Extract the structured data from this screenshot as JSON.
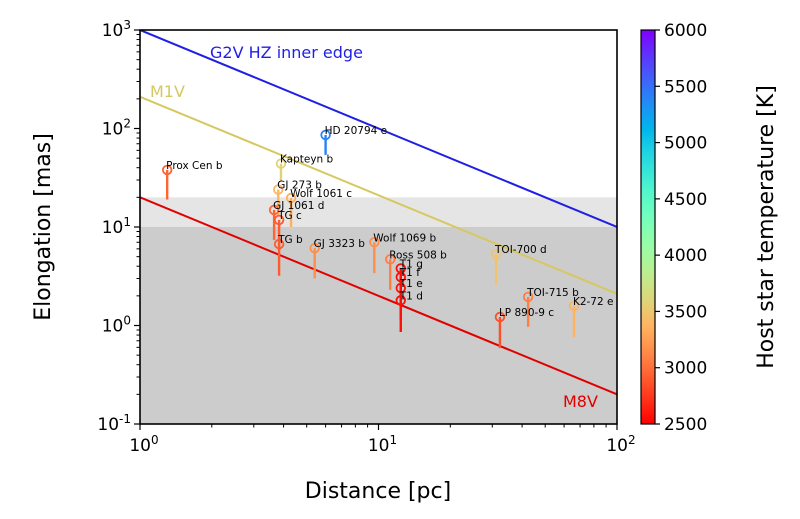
{
  "chart_data": {
    "type": "scatter",
    "xlabel": "Distance [pc]",
    "ylabel": "Elongation [mas]",
    "xscale": "log",
    "yscale": "log",
    "xlim": [
      1,
      100
    ],
    "ylim": [
      0.1,
      1000
    ],
    "x_tick_exponents": [
      0,
      1,
      2
    ],
    "y_tick_exponents": [
      -1,
      0,
      1,
      2,
      3
    ],
    "grid": false,
    "shaded_bands": [
      {
        "from_mas": 10,
        "to_mas": 20,
        "color": "#e5e5e5"
      },
      {
        "from_mas": 0.1,
        "to_mas": 10,
        "color": "#cccccc"
      }
    ],
    "reference_lines": [
      {
        "label": "G2V HZ inner edge",
        "color": "#1f1fe6",
        "elongation_at_1pc": 1000,
        "elongation_at_100pc": 10
      },
      {
        "label": "M1V",
        "color": "#d6c860",
        "elongation_at_1pc": 210,
        "elongation_at_100pc": 2.1
      },
      {
        "label": "M8V",
        "color": "#e00000",
        "elongation_at_1pc": 20,
        "elongation_at_100pc": 0.2
      }
    ],
    "colorbar": {
      "label": "Host star temperature [K]",
      "colormap": "rainbow_r",
      "range": [
        2500,
        6000
      ],
      "ticks": [
        2500,
        3000,
        3500,
        4000,
        4500,
        5000,
        5500,
        6000
      ]
    },
    "planets": [
      {
        "name": "Prox Cen b",
        "distance_pc": 1.3,
        "elongation_mas": 38,
        "elongation_min_mas": 19,
        "temperature_K": 2950
      },
      {
        "name": "Kapteyn b",
        "distance_pc": 3.9,
        "elongation_mas": 44,
        "elongation_min_mas": 29,
        "temperature_K": 3570
      },
      {
        "name": "HD 20794 e",
        "distance_pc": 6.0,
        "elongation_mas": 86,
        "elongation_min_mas": 54,
        "temperature_K": 5400
      },
      {
        "name": "GJ 273 b",
        "distance_pc": 3.8,
        "elongation_mas": 24,
        "elongation_min_mas": 13,
        "temperature_K": 3380
      },
      {
        "name": "Wolf 1061 c",
        "distance_pc": 4.3,
        "elongation_mas": 19.7,
        "elongation_min_mas": 10,
        "temperature_K": 3340
      },
      {
        "name": "GJ 1061 d",
        "distance_pc": 3.65,
        "elongation_mas": 14.9,
        "elongation_min_mas": 7.4,
        "temperature_K": 2950
      },
      {
        "name": "TG c",
        "distance_pc": 3.83,
        "elongation_mas": 11.8,
        "elongation_min_mas": 5.8,
        "temperature_K": 2900
      },
      {
        "name": "TG b",
        "distance_pc": 3.83,
        "elongation_mas": 6.7,
        "elongation_min_mas": 3.2,
        "temperature_K": 2900
      },
      {
        "name": "GJ 3323 b",
        "distance_pc": 5.4,
        "elongation_mas": 6.1,
        "elongation_min_mas": 3.0,
        "temperature_K": 3160
      },
      {
        "name": "Wolf 1069 b",
        "distance_pc": 9.6,
        "elongation_mas": 7.0,
        "elongation_min_mas": 3.4,
        "temperature_K": 3160
      },
      {
        "name": "Ross 508 b",
        "distance_pc": 11.2,
        "elongation_mas": 4.7,
        "elongation_min_mas": 2.3,
        "temperature_K": 3070
      },
      {
        "name": "T1 g",
        "distance_pc": 12.4,
        "elongation_mas": 3.8,
        "elongation_min_mas": 1.8,
        "temperature_K": 2560
      },
      {
        "name": "T1 f",
        "distance_pc": 12.4,
        "elongation_mas": 3.1,
        "elongation_min_mas": 1.5,
        "temperature_K": 2560
      },
      {
        "name": "T1 e",
        "distance_pc": 12.4,
        "elongation_mas": 2.4,
        "elongation_min_mas": 1.15,
        "temperature_K": 2560
      },
      {
        "name": "T1 d",
        "distance_pc": 12.4,
        "elongation_mas": 1.8,
        "elongation_min_mas": 0.86,
        "temperature_K": 2560
      },
      {
        "name": "TOI-700 d",
        "distance_pc": 31.1,
        "elongation_mas": 5.3,
        "elongation_min_mas": 2.6,
        "temperature_K": 3480
      },
      {
        "name": "TOI-715 b",
        "distance_pc": 42.4,
        "elongation_mas": 1.95,
        "elongation_min_mas": 0.97,
        "temperature_K": 3075
      },
      {
        "name": "K2-72 e",
        "distance_pc": 66,
        "elongation_mas": 1.58,
        "elongation_min_mas": 0.76,
        "temperature_K": 3360
      },
      {
        "name": "LP 890-9 c",
        "distance_pc": 32.3,
        "elongation_mas": 1.22,
        "elongation_min_mas": 0.59,
        "temperature_K": 2850
      }
    ]
  }
}
